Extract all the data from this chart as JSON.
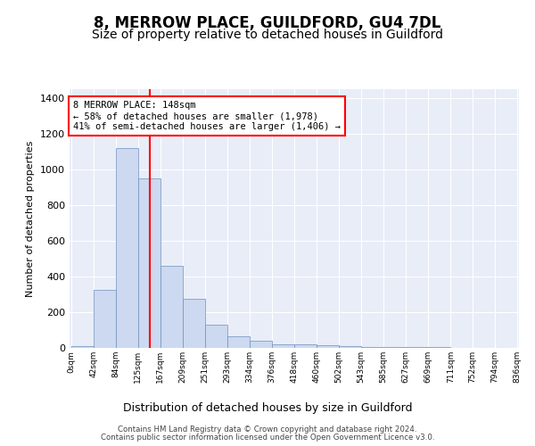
{
  "title": "8, MERROW PLACE, GUILDFORD, GU4 7DL",
  "subtitle": "Size of property relative to detached houses in Guildford",
  "xlabel": "Distribution of detached houses by size in Guildford",
  "ylabel": "Number of detached properties",
  "footnote1": "Contains HM Land Registry data © Crown copyright and database right 2024.",
  "footnote2": "Contains public sector information licensed under the Open Government Licence v3.0.",
  "annotation_title": "8 MERROW PLACE: 148sqm",
  "annotation_line2": "← 58% of detached houses are smaller (1,978)",
  "annotation_line3": "41% of semi-detached houses are larger (1,406) →",
  "bar_color": "#ccd9f0",
  "bar_edge_color": "#7090bb",
  "vline_color": "red",
  "vline_x": 148,
  "x_labels": [
    "0sqm",
    "42sqm",
    "84sqm",
    "125sqm",
    "167sqm",
    "209sqm",
    "251sqm",
    "293sqm",
    "334sqm",
    "376sqm",
    "418sqm",
    "460sqm",
    "502sqm",
    "543sqm",
    "585sqm",
    "627sqm",
    "669sqm",
    "711sqm",
    "752sqm",
    "794sqm",
    "836sqm"
  ],
  "bin_edges": [
    0,
    42,
    84,
    125,
    167,
    209,
    251,
    293,
    334,
    376,
    418,
    460,
    502,
    543,
    585,
    627,
    669,
    711,
    752,
    794,
    836
  ],
  "bar_heights": [
    10,
    325,
    1120,
    950,
    460,
    275,
    130,
    65,
    40,
    20,
    20,
    15,
    10,
    5,
    5,
    3,
    3,
    2,
    2,
    1
  ],
  "ylim": [
    0,
    1450
  ],
  "yticks": [
    0,
    200,
    400,
    600,
    800,
    1000,
    1200,
    1400
  ],
  "background_color": "#e8edf8",
  "title_fontsize": 12,
  "subtitle_fontsize": 10
}
